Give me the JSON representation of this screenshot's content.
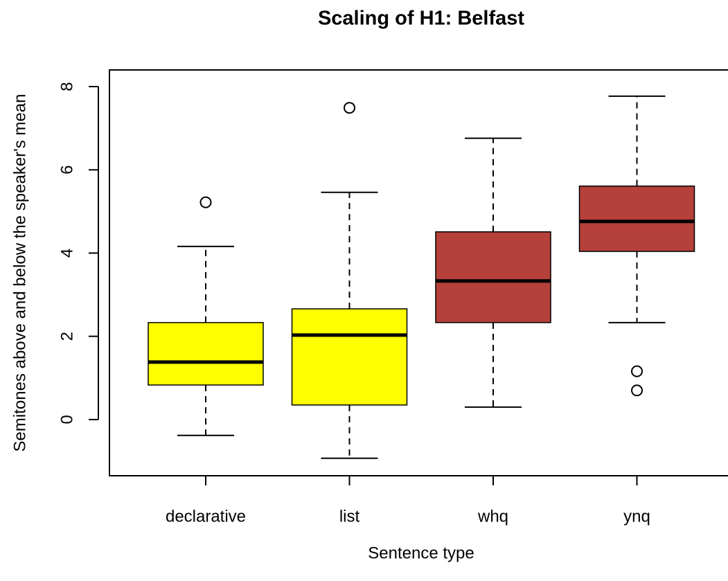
{
  "chart_data": {
    "type": "box",
    "title": "Scaling of H1: Belfast",
    "xlabel": "Sentence type",
    "ylabel": "Semitones above and below the speaker's mean",
    "categories": [
      "declarative",
      "list",
      "whq",
      "ynq"
    ],
    "colors": [
      "#ffff00",
      "#ffff00",
      "#b5413a",
      "#b5413a"
    ],
    "boxes": [
      {
        "min": -0.38,
        "q1": 0.83,
        "median": 1.38,
        "q3": 2.33,
        "max": 4.16,
        "outliers": [
          5.22
        ]
      },
      {
        "min": -0.93,
        "q1": 0.35,
        "median": 2.03,
        "q3": 2.66,
        "max": 5.46,
        "outliers": [
          7.49
        ]
      },
      {
        "min": 0.3,
        "q1": 2.33,
        "median": 3.33,
        "q3": 4.51,
        "max": 6.76,
        "outliers": []
      },
      {
        "min": 2.33,
        "q1": 4.04,
        "median": 4.76,
        "q3": 5.61,
        "max": 7.77,
        "outliers": [
          1.16,
          0.7
        ]
      }
    ],
    "ylim": [
      -1.35,
      8.4
    ],
    "yticks": [
      0,
      2,
      4,
      6,
      8
    ]
  }
}
